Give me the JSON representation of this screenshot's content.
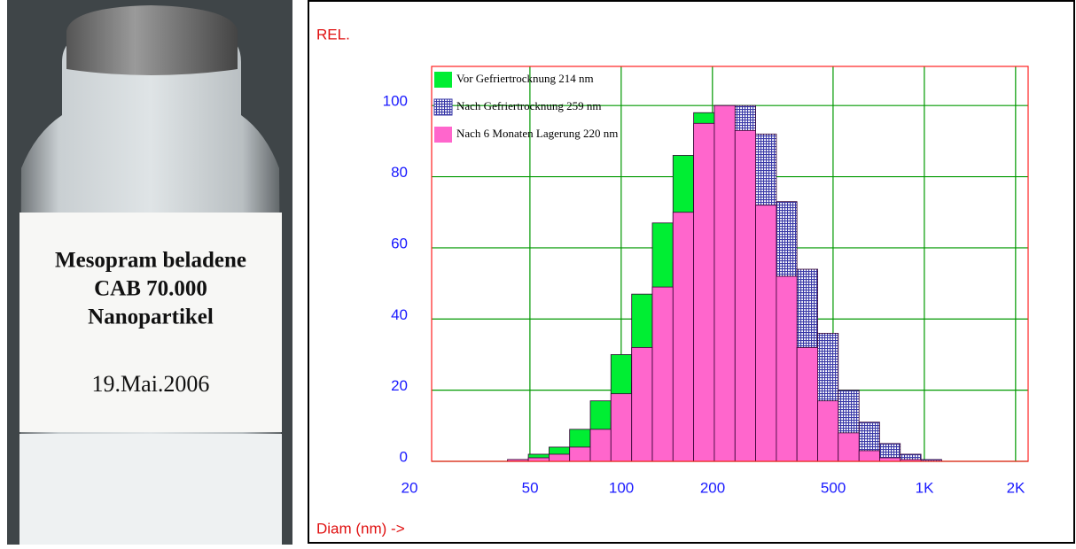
{
  "photo": {
    "label_lines": [
      "Mesopram beladene",
      "CAB 70.000",
      "Nanopartikel"
    ],
    "date": "19.Mai.2006"
  },
  "chart_data": {
    "type": "histogram",
    "y_label": "REL.",
    "x_label": "Diam (nm) ->",
    "log_x": true,
    "grid": true,
    "legend": "top-left",
    "bins": [
      42.2,
      49.4,
      57.8,
      67.6,
      79.1,
      92.5,
      108.3,
      126.7,
      148.2,
      173.4,
      202.9,
      237.4,
      277.7,
      325,
      380,
      445,
      520,
      609,
      712,
      833,
      975,
      1141
    ],
    "xlim": [
      23.7,
      2200
    ],
    "xticks": [
      20,
      50,
      100,
      200,
      500,
      {
        "value": 1000,
        "label": "1K"
      },
      {
        "value": 2000,
        "label": "2K"
      }
    ],
    "ylim": [
      0,
      111
    ],
    "yticks": [
      0,
      20,
      40,
      60,
      80,
      100
    ],
    "series": [
      {
        "name": "Vor Gefriertrocknung 214 nm",
        "color": "#00ee33",
        "pattern": "solid",
        "values": [
          0.5,
          2,
          4,
          9,
          17,
          30,
          47,
          67,
          86,
          98,
          100,
          92,
          70,
          50,
          30,
          15,
          7,
          3,
          1,
          0.5,
          0
        ]
      },
      {
        "name": "Nach Gefriertrocknung 259 nm",
        "color": "#3a3aa8",
        "pattern": "crosshatch",
        "values": [
          0,
          0.3,
          1,
          2,
          5,
          11,
          22,
          37,
          56,
          76,
          93,
          100,
          92,
          73,
          54,
          36,
          20,
          11,
          5,
          2,
          0.5
        ]
      },
      {
        "name": "Nach 6 Monaten Lagerung 220 nm",
        "color": "#ff66cc",
        "pattern": "solid",
        "values": [
          0.5,
          1,
          2,
          4,
          9,
          19,
          32,
          49,
          70,
          95,
          100,
          93,
          72,
          52,
          32,
          17,
          8,
          3,
          1,
          0.5,
          0
        ]
      }
    ]
  }
}
